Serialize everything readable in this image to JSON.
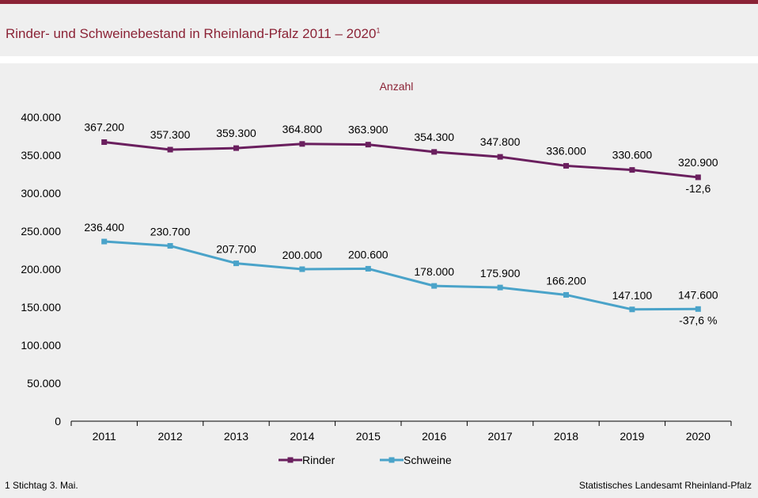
{
  "header": {
    "title": "Rinder- und Schweinebestand in Rheinland-Pfalz 2011 – 2020",
    "title_footnote_mark": "1"
  },
  "footer": {
    "footnote": "1 Stichtag 3. Mai.",
    "source": "Statistisches Landesamt Rheinland-Pfalz"
  },
  "colors": {
    "accent": "#8b2336",
    "rinder": "#6a1f5e",
    "schweine": "#4aa3c9"
  },
  "chart_data": {
    "type": "line",
    "title": "Rinder- und Schweinebestand in Rheinland-Pfalz 2011 – 2020",
    "subtitle": "Anzahl",
    "x": [
      "2011",
      "2012",
      "2013",
      "2014",
      "2015",
      "2016",
      "2017",
      "2018",
      "2019",
      "2020"
    ],
    "ylim": [
      0,
      400000
    ],
    "yticks": [
      0,
      50000,
      100000,
      150000,
      200000,
      250000,
      300000,
      350000,
      400000
    ],
    "ytick_labels": [
      "0",
      "50.000",
      "100.000",
      "150.000",
      "200.000",
      "250.000",
      "300.000",
      "350.000",
      "400.000"
    ],
    "grid": false,
    "legend_position": "bottom",
    "series": [
      {
        "name": "Rinder",
        "color": "#6a1f5e",
        "values": [
          367200,
          357300,
          359300,
          364800,
          363900,
          354300,
          347800,
          336000,
          330600,
          320900
        ],
        "labels": [
          "367.200",
          "357.300",
          "359.300",
          "364.800",
          "363.900",
          "354.300",
          "347.800",
          "336.000",
          "330.600",
          "320.900"
        ],
        "change_label": "-12,6"
      },
      {
        "name": "Schweine",
        "color": "#4aa3c9",
        "values": [
          236400,
          230700,
          207700,
          200000,
          200600,
          178000,
          175900,
          166200,
          147100,
          147600
        ],
        "labels": [
          "236.400",
          "230.700",
          "207.700",
          "200.000",
          "200.600",
          "178.000",
          "175.900",
          "166.200",
          "147.100",
          "147.600"
        ],
        "change_label": "-37,6 %"
      }
    ]
  }
}
